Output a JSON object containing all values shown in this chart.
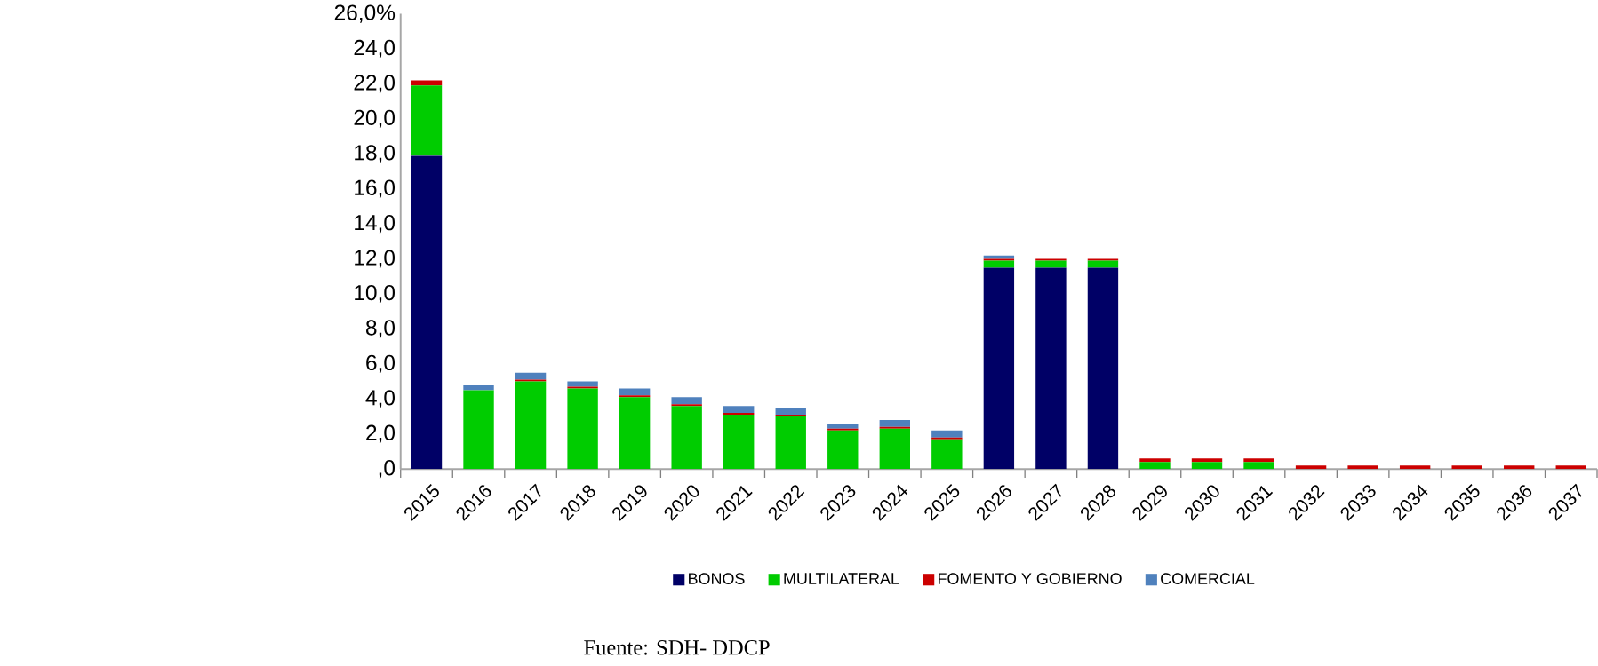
{
  "chart_data": {
    "type": "bar",
    "stacked": true,
    "categories": [
      "2015",
      "2016",
      "2017",
      "2018",
      "2019",
      "2020",
      "2021",
      "2022",
      "2023",
      "2024",
      "2025",
      "2026",
      "2027",
      "2028",
      "2029",
      "2030",
      "2031",
      "2032",
      "2033",
      "2034",
      "2035",
      "2036",
      "2037"
    ],
    "series": [
      {
        "name": "BONOS",
        "color": "#000066",
        "values": [
          17.9,
          0,
          0,
          0,
          0,
          0,
          0,
          0,
          0,
          0,
          0,
          11.5,
          11.5,
          11.5,
          0,
          0,
          0,
          0,
          0,
          0,
          0,
          0,
          0
        ]
      },
      {
        "name": "MULTILATERAL",
        "color": "#00cc00",
        "values": [
          4.0,
          4.5,
          5.0,
          4.6,
          4.1,
          3.6,
          3.1,
          3.0,
          2.2,
          2.3,
          1.7,
          0.4,
          0.4,
          0.4,
          0.4,
          0.4,
          0.4,
          0,
          0,
          0,
          0,
          0,
          0
        ]
      },
      {
        "name": "FOMENTO Y GOBIERNO",
        "color": "#cc0000",
        "values": [
          0.3,
          0,
          0.1,
          0.1,
          0.1,
          0.1,
          0.1,
          0.1,
          0.1,
          0.1,
          0.1,
          0.1,
          0.1,
          0.1,
          0.2,
          0.2,
          0.2,
          0.2,
          0.2,
          0.2,
          0.2,
          0.2,
          0.2
        ]
      },
      {
        "name": "COMERCIAL",
        "color": "#4f81bd",
        "values": [
          0,
          0.3,
          0.4,
          0.3,
          0.4,
          0.4,
          0.4,
          0.4,
          0.3,
          0.4,
          0.4,
          0.2,
          0,
          0,
          0,
          0,
          0,
          0,
          0,
          0,
          0,
          0,
          0
        ]
      }
    ],
    "ylim": [
      0,
      26
    ],
    "yticks": [
      {
        "value": 0,
        "label": ",0"
      },
      {
        "value": 2,
        "label": "2,0"
      },
      {
        "value": 4,
        "label": "4,0"
      },
      {
        "value": 6,
        "label": "6,0"
      },
      {
        "value": 8,
        "label": "8,0"
      },
      {
        "value": 10,
        "label": "10,0"
      },
      {
        "value": 12,
        "label": "12,0"
      },
      {
        "value": 14,
        "label": "14,0"
      },
      {
        "value": 16,
        "label": "16,0"
      },
      {
        "value": 18,
        "label": "18,0"
      },
      {
        "value": 20,
        "label": "20,0"
      },
      {
        "value": 22,
        "label": "22,0"
      },
      {
        "value": 24,
        "label": "24,0"
      },
      {
        "value": 26,
        "label": "26,0%"
      }
    ],
    "legend": "bottom",
    "annotations": [
      "Fuente: SDH- DDCP"
    ]
  }
}
